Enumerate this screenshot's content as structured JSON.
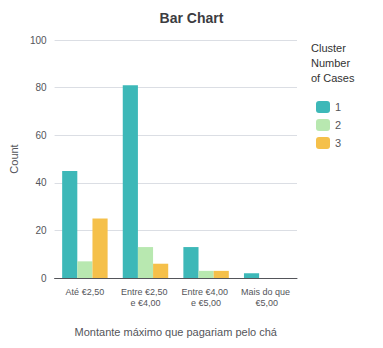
{
  "chart_data": {
    "type": "bar",
    "title": "Bar Chart",
    "ylabel": "Count",
    "xlabel": "Montante máximo que pagariam pelo chá",
    "categories": [
      "Até €2,50",
      "Entre €2,50 e €4,00",
      "Entre €4,00 e €5,00",
      "Mais do que €5,00"
    ],
    "series": [
      {
        "name": "1",
        "color": "#3db8b8",
        "values": [
          45,
          81,
          13,
          2
        ]
      },
      {
        "name": "2",
        "color": "#b8e8b0",
        "values": [
          7,
          13,
          3,
          0
        ]
      },
      {
        "name": "3",
        "color": "#f5c04a",
        "values": [
          25,
          6,
          3,
          0
        ]
      }
    ],
    "legend_title": "Cluster\nNumber\nof Cases",
    "legend": "upper right",
    "ylim": [
      0,
      100
    ],
    "yticks": [
      0,
      20,
      40,
      60,
      80,
      100
    ],
    "grid": true
  }
}
